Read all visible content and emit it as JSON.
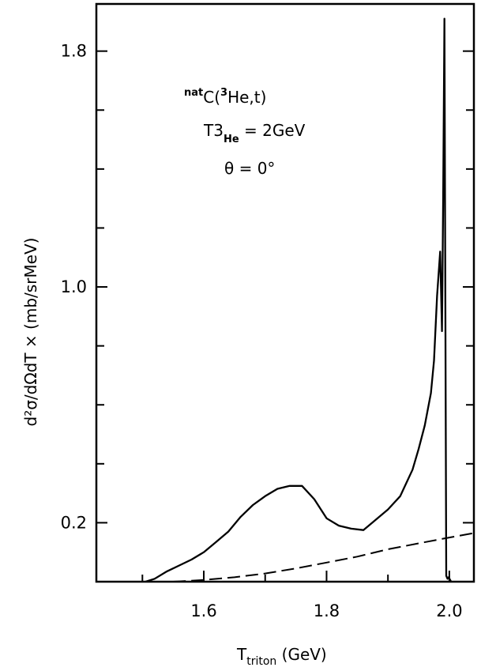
{
  "chart_data": {
    "type": "line",
    "xlabel_main": "T",
    "xlabel_sub": "triton",
    "xlabel_unit": " (GeV)",
    "ylabel": "d²σ/dΩdT × (mb/srMeV)",
    "xlim": [
      1.425,
      2.04
    ],
    "ylim": [
      0.0,
      1.96
    ],
    "x_ticks": [
      {
        "value": 1.6,
        "label": "1.6"
      },
      {
        "value": 1.8,
        "label": "1.8"
      },
      {
        "value": 2.0,
        "label": "2.0"
      }
    ],
    "y_ticks": [
      {
        "value": 0.2,
        "label": "0.2"
      },
      {
        "value": 1.0,
        "label": "1.0"
      },
      {
        "value": 1.8,
        "label": "1.8"
      }
    ],
    "annotation": {
      "reaction_sup": "nat",
      "reaction_a": "C(",
      "reaction_sup2": "3",
      "reaction_b": "He,t)",
      "energy_a": "T3",
      "energy_sub": "He",
      "energy_b": " = 2GeV",
      "angle": "θ = 0°"
    },
    "series": [
      {
        "style": "solid",
        "x": [
          1.505,
          1.52,
          1.54,
          1.56,
          1.58,
          1.6,
          1.62,
          1.64,
          1.66,
          1.68,
          1.7,
          1.72,
          1.74,
          1.76,
          1.78,
          1.8,
          1.82,
          1.84,
          1.86,
          1.88,
          1.9,
          1.92,
          1.94,
          1.95,
          1.96,
          1.97,
          1.975,
          1.98,
          1.985,
          1.988,
          1.99,
          1.992,
          1.995,
          1.997,
          1.999,
          2.003
        ],
        "y": [
          0.0,
          0.01,
          0.035,
          0.055,
          0.075,
          0.1,
          0.135,
          0.17,
          0.22,
          0.26,
          0.29,
          0.315,
          0.325,
          0.325,
          0.28,
          0.215,
          0.19,
          0.18,
          0.175,
          0.21,
          0.245,
          0.29,
          0.38,
          0.45,
          0.53,
          0.64,
          0.75,
          0.97,
          1.12,
          0.85,
          1.3,
          1.91,
          0.02,
          0.01,
          0.015,
          0.0
        ]
      },
      {
        "style": "dashed",
        "x": [
          1.55,
          1.6,
          1.65,
          1.7,
          1.75,
          1.8,
          1.85,
          1.9,
          1.95,
          2.0,
          2.04
        ],
        "y": [
          0.0,
          0.006,
          0.015,
          0.028,
          0.045,
          0.065,
          0.085,
          0.11,
          0.13,
          0.15,
          0.165
        ]
      }
    ]
  }
}
